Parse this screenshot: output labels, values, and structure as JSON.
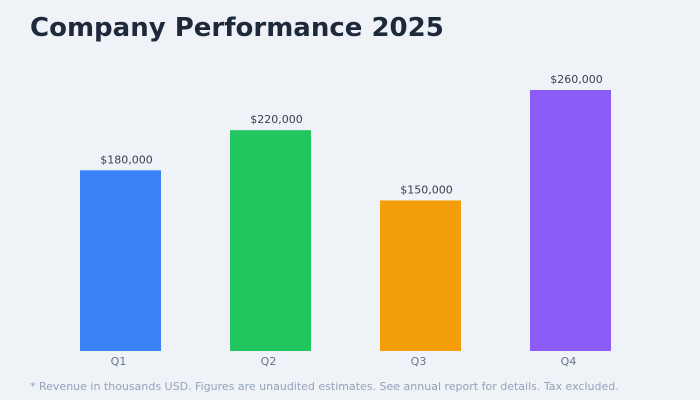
{
  "chart_data": {
    "type": "bar",
    "title": "Company Performance 2025",
    "categories": [
      "Q1",
      "Q2",
      "Q3",
      "Q4"
    ],
    "values": [
      180000,
      220000,
      150000,
      260000
    ],
    "value_labels": [
      "$180,000",
      "$220,000",
      "$150,000",
      "$260,000"
    ],
    "colors": [
      "#3b82f6",
      "#22c55e",
      "#f59e0b",
      "#8b5cf6"
    ],
    "ylim": [
      0,
      260000
    ],
    "grid": false,
    "footnote": "* Revenue in thousands USD. Figures are unaudited estimates. See annual report for details. Tax excluded."
  }
}
